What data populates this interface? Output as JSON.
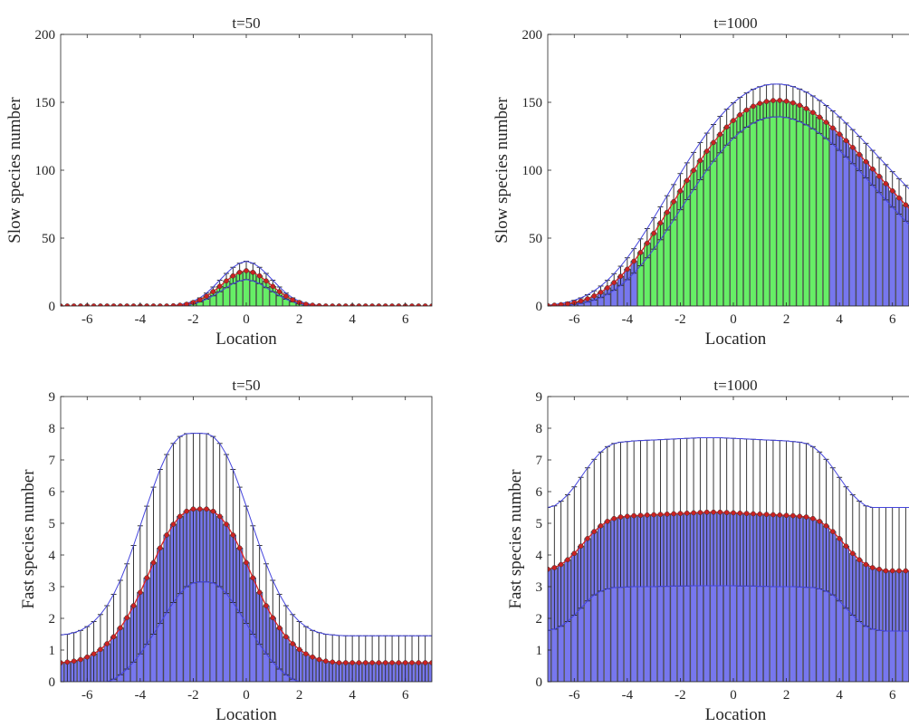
{
  "colors": {
    "slow_bar_face": "#66ee66",
    "fast_bar_face": "#7777ee",
    "bar_edge": "#333333",
    "mean_curve": "#dd2222",
    "marker_face": "#cc2222",
    "bound_curve": "#4444dd",
    "errorbar": "#222222"
  },
  "chart_data": [
    {
      "type": "bar",
      "title": "t=50",
      "xlabel": "Location",
      "ylabel": "Slow species number",
      "xlim": [
        -7,
        7
      ],
      "ylim": [
        0,
        200
      ],
      "xticks": [
        -6,
        -4,
        -2,
        0,
        2,
        4,
        6
      ],
      "yticks": [
        0,
        50,
        100,
        150,
        200
      ],
      "x": [
        -7,
        -6.75,
        -6.5,
        -6.25,
        -6,
        -5.75,
        -5.5,
        -5.25,
        -5,
        -4.75,
        -4.5,
        -4.25,
        -4,
        -3.75,
        -3.5,
        -3.25,
        -3,
        -2.75,
        -2.5,
        -2.25,
        -2,
        -1.75,
        -1.5,
        -1.25,
        -1,
        -0.75,
        -0.5,
        -0.25,
        0,
        0.25,
        0.5,
        0.75,
        1,
        1.25,
        1.5,
        1.75,
        2,
        2.25,
        2.5,
        2.75,
        3,
        3.25,
        3.5,
        3.75,
        4,
        4.25,
        4.5,
        4.75,
        5,
        5.25,
        5.5,
        5.75,
        6,
        6.25,
        6.5,
        6.75,
        7
      ],
      "series": [
        {
          "values": [
            0,
            0,
            0,
            0,
            0,
            0,
            0,
            0,
            0,
            0,
            0,
            0,
            0,
            0,
            0,
            0,
            0,
            0.2,
            0.6,
            1.3,
            2.6,
            4.5,
            7.2,
            10.6,
            14.5,
            18.5,
            22.2,
            24.8,
            26,
            24.8,
            22.2,
            18.5,
            14.5,
            10.6,
            7.2,
            4.5,
            2.6,
            1.3,
            0.6,
            0.2,
            0,
            0,
            0,
            0,
            0,
            0,
            0,
            0,
            0,
            0,
            0,
            0,
            0,
            0,
            0,
            0,
            0
          ]
        },
        {
          "values": [
            0,
            0,
            0,
            0,
            0,
            0,
            0,
            0,
            0,
            0,
            0,
            0,
            0,
            0,
            0,
            0,
            0,
            0.4,
            1,
            2,
            3.5,
            6,
            9.5,
            14,
            19,
            24,
            28.5,
            31.5,
            33,
            31.5,
            28.5,
            24,
            19,
            14,
            9.5,
            6,
            3.5,
            2,
            1,
            0.4,
            0,
            0,
            0,
            0,
            0,
            0,
            0,
            0,
            0,
            0,
            0,
            0,
            0,
            0,
            0,
            0,
            0
          ]
        },
        {
          "values": [
            0,
            0,
            0,
            0,
            0,
            0,
            0,
            0,
            0,
            0,
            0,
            0,
            0,
            0,
            0,
            0,
            0,
            0,
            0.2,
            0.6,
            1.6,
            3,
            5,
            7.5,
            10.5,
            13.5,
            16.5,
            18.5,
            19.5,
            18.5,
            16.5,
            13.5,
            10.5,
            7.5,
            5,
            3,
            1.6,
            0.6,
            0.2,
            0,
            0,
            0,
            0,
            0,
            0,
            0,
            0,
            0,
            0,
            0,
            0,
            0,
            0,
            0,
            0,
            0,
            0
          ]
        }
      ],
      "green_band": [
        -2,
        2
      ]
    },
    {
      "type": "bar",
      "title": "t=1000",
      "xlabel": "Location",
      "ylabel": "Slow species number",
      "xlim": [
        -7,
        7
      ],
      "ylim": [
        0,
        200
      ],
      "xticks": [
        -6,
        -4,
        -2,
        0,
        2,
        4,
        6
      ],
      "yticks": [
        0,
        50,
        100,
        150,
        200
      ],
      "x": [
        -7,
        -6.75,
        -6.5,
        -6.25,
        -6,
        -5.75,
        -5.5,
        -5.25,
        -5,
        -4.75,
        -4.5,
        -4.25,
        -4,
        -3.75,
        -3.5,
        -3.25,
        -3,
        -2.75,
        -2.5,
        -2.25,
        -2,
        -1.75,
        -1.5,
        -1.25,
        -1,
        -0.75,
        -0.5,
        -0.25,
        0,
        0.25,
        0.5,
        0.75,
        1,
        1.25,
        1.5,
        1.75,
        2,
        2.25,
        2.5,
        2.75,
        3,
        3.25,
        3.5,
        3.75,
        4,
        4.25,
        4.5,
        4.75,
        5,
        5.25,
        5.5,
        5.75,
        6,
        6.25,
        6.5,
        6.75,
        7
      ],
      "series": [
        {
          "values": [
            0.3,
            0.6,
            1,
            1.6,
            2.5,
            3.7,
            5.3,
            7.4,
            10.1,
            13.4,
            17.3,
            21.9,
            27.1,
            33,
            39.4,
            46.3,
            53.6,
            61.2,
            69,
            76.9,
            84.7,
            92.4,
            99.9,
            107.1,
            114,
            120.4,
            126.4,
            131.8,
            136.6,
            140.8,
            144.3,
            147.1,
            149.2,
            150.6,
            151.3,
            151.4,
            150.8,
            149.6,
            147.8,
            145.4,
            142.5,
            139.1,
            135.3,
            131.1,
            126.6,
            121.8,
            116.8,
            111.6,
            106.3,
            100.9,
            95.5,
            90.1,
            84.8,
            79.6,
            74.5,
            69.6,
            64.9
          ]
        },
        {
          "values": [
            0.6,
            1.1,
            1.8,
            2.8,
            4.2,
            6,
            8.3,
            11.2,
            14.7,
            18.9,
            23.8,
            29.3,
            35.5,
            42.2,
            49.4,
            57,
            64.9,
            73,
            81.2,
            89.4,
            97.5,
            105.4,
            113.1,
            120.4,
            127.3,
            133.7,
            139.6,
            144.9,
            149.6,
            153.6,
            156.9,
            159.6,
            161.5,
            162.8,
            163.4,
            163.4,
            162.8,
            161.6,
            159.8,
            157.5,
            154.7,
            151.4,
            147.7,
            143.7,
            139.3,
            134.7,
            129.9,
            124.9,
            119.8,
            114.6,
            109.3,
            104.1,
            98.9,
            93.8,
            88.8,
            84,
            79.3
          ]
        },
        {
          "values": [
            0.1,
            0.2,
            0.4,
            0.7,
            1.2,
            1.9,
            2.9,
            4.3,
            6.2,
            8.6,
            11.6,
            15.2,
            19.4,
            24.2,
            29.6,
            35.5,
            41.9,
            48.8,
            56,
            63.4,
            70.9,
            78.4,
            85.8,
            93,
            100,
            106.6,
            112.8,
            118.5,
            123.6,
            128,
            131.7,
            134.7,
            137,
            138.5,
            139.2,
            139.3,
            138.8,
            137.6,
            135.8,
            133.4,
            130.5,
            127.1,
            123.3,
            119.1,
            114.6,
            109.8,
            104.8,
            99.6,
            94.3,
            88.9,
            83.5,
            78.1,
            72.8,
            67.6,
            62.5,
            57.6,
            52.9
          ]
        }
      ],
      "green_band": [
        -3.5,
        3.5
      ]
    },
    {
      "type": "bar",
      "title": "t=50",
      "xlabel": "Location",
      "ylabel": "Fast species number",
      "xlim": [
        -7,
        7
      ],
      "ylim": [
        0,
        9
      ],
      "xticks": [
        -6,
        -4,
        -2,
        0,
        2,
        4,
        6
      ],
      "yticks": [
        0,
        1,
        2,
        3,
        4,
        5,
        6,
        7,
        8,
        9
      ],
      "x": [
        -7,
        -6.75,
        -6.5,
        -6.25,
        -6,
        -5.75,
        -5.5,
        -5.25,
        -5,
        -4.75,
        -4.5,
        -4.25,
        -4,
        -3.75,
        -3.5,
        -3.25,
        -3,
        -2.75,
        -2.5,
        -2.25,
        -2,
        -1.75,
        -1.5,
        -1.25,
        -1,
        -0.75,
        -0.5,
        -0.25,
        0,
        0.25,
        0.5,
        0.75,
        1,
        1.25,
        1.5,
        1.75,
        2,
        2.25,
        2.5,
        2.75,
        3,
        3.25,
        3.5,
        3.75,
        4,
        4.25,
        4.5,
        4.75,
        5,
        5.25,
        5.5,
        5.75,
        6,
        6.25,
        6.5,
        6.75,
        7
      ],
      "series": [
        {
          "values": [
            0.6,
            0.62,
            0.65,
            0.7,
            0.78,
            0.88,
            1.02,
            1.2,
            1.42,
            1.7,
            2.02,
            2.4,
            2.82,
            3.28,
            3.76,
            4.22,
            4.63,
            4.97,
            5.22,
            5.38,
            5.45,
            5.45,
            5.45,
            5.38,
            5.22,
            4.97,
            4.63,
            4.22,
            3.76,
            3.28,
            2.82,
            2.4,
            2.02,
            1.7,
            1.42,
            1.2,
            1.02,
            0.88,
            0.78,
            0.7,
            0.65,
            0.62,
            0.6,
            0.6,
            0.6,
            0.6,
            0.6,
            0.6,
            0.6,
            0.6,
            0.6,
            0.6,
            0.6,
            0.6,
            0.6,
            0.6,
            0.6
          ]
        },
        {
          "values": [
            1.48,
            1.5,
            1.55,
            1.62,
            1.74,
            1.9,
            2.12,
            2.4,
            2.76,
            3.2,
            3.72,
            4.3,
            4.92,
            5.54,
            6.14,
            6.7,
            7.17,
            7.52,
            7.74,
            7.83,
            7.84,
            7.84,
            7.83,
            7.74,
            7.52,
            7.17,
            6.7,
            6.14,
            5.54,
            4.92,
            4.3,
            3.72,
            3.2,
            2.76,
            2.4,
            2.12,
            1.9,
            1.74,
            1.62,
            1.55,
            1.5,
            1.48,
            1.46,
            1.45,
            1.45,
            1.45,
            1.45,
            1.45,
            1.45,
            1.45,
            1.45,
            1.45,
            1.45,
            1.45,
            1.45,
            1.45,
            1.45
          ]
        },
        {
          "values": [
            0,
            0,
            0,
            0,
            0,
            0,
            0,
            0,
            0.08,
            0.22,
            0.4,
            0.62,
            0.88,
            1.18,
            1.5,
            1.84,
            2.18,
            2.5,
            2.78,
            3,
            3.12,
            3.15,
            3.15,
            3.12,
            3,
            2.78,
            2.5,
            2.18,
            1.84,
            1.5,
            1.18,
            0.88,
            0.62,
            0.4,
            0.22,
            0.08,
            0,
            0,
            0,
            0,
            0,
            0,
            0,
            0,
            0,
            0,
            0,
            0,
            0,
            0,
            0,
            0,
            0,
            0,
            0,
            0,
            0
          ]
        }
      ]
    },
    {
      "type": "bar",
      "title": "t=1000",
      "xlabel": "Location",
      "ylabel": "Fast species number",
      "xlim": [
        -7,
        7
      ],
      "ylim": [
        0,
        9
      ],
      "xticks": [
        -6,
        -4,
        -2,
        0,
        2,
        4,
        6
      ],
      "yticks": [
        0,
        1,
        2,
        3,
        4,
        5,
        6,
        7,
        8,
        9
      ],
      "x": [
        -7,
        -6.75,
        -6.5,
        -6.25,
        -6,
        -5.75,
        -5.5,
        -5.25,
        -5,
        -4.75,
        -4.5,
        -4.25,
        -4,
        -3.75,
        -3.5,
        -3.25,
        -3,
        -2.75,
        -2.5,
        -2.25,
        -2,
        -1.75,
        -1.5,
        -1.25,
        -1,
        -0.75,
        -0.5,
        -0.25,
        0,
        0.25,
        0.5,
        0.75,
        1,
        1.25,
        1.5,
        1.75,
        2,
        2.25,
        2.5,
        2.75,
        3,
        3.25,
        3.5,
        3.75,
        4,
        4.25,
        4.5,
        4.75,
        5,
        5.25,
        5.5,
        5.75,
        6,
        6.25,
        6.5,
        6.75,
        7
      ],
      "series": [
        {
          "values": [
            3.55,
            3.6,
            3.7,
            3.85,
            4.05,
            4.28,
            4.52,
            4.74,
            4.92,
            5.06,
            5.15,
            5.2,
            5.22,
            5.24,
            5.25,
            5.26,
            5.27,
            5.28,
            5.29,
            5.3,
            5.31,
            5.32,
            5.33,
            5.34,
            5.35,
            5.35,
            5.35,
            5.34,
            5.33,
            5.32,
            5.31,
            5.3,
            5.29,
            5.28,
            5.27,
            5.26,
            5.25,
            5.24,
            5.22,
            5.2,
            5.15,
            5.06,
            4.92,
            4.74,
            4.52,
            4.28,
            4.05,
            3.85,
            3.7,
            3.6,
            3.55,
            3.5,
            3.5,
            3.5,
            3.5,
            3.5,
            3.5
          ]
        },
        {
          "values": [
            5.5,
            5.55,
            5.7,
            5.9,
            6.15,
            6.45,
            6.75,
            7.02,
            7.25,
            7.42,
            7.52,
            7.56,
            7.58,
            7.6,
            7.61,
            7.62,
            7.63,
            7.64,
            7.65,
            7.66,
            7.67,
            7.68,
            7.69,
            7.7,
            7.7,
            7.7,
            7.7,
            7.69,
            7.68,
            7.67,
            7.66,
            7.65,
            7.64,
            7.63,
            7.62,
            7.61,
            7.6,
            7.58,
            7.56,
            7.52,
            7.42,
            7.25,
            7.02,
            6.75,
            6.45,
            6.15,
            5.9,
            5.7,
            5.55,
            5.5,
            5.5,
            5.5,
            5.5,
            5.5,
            5.5,
            5.5,
            5.5
          ]
        },
        {
          "values": [
            1.62,
            1.66,
            1.75,
            1.9,
            2.1,
            2.32,
            2.55,
            2.74,
            2.86,
            2.93,
            2.97,
            2.98,
            2.99,
            3,
            3,
            3,
            3,
            3.01,
            3.01,
            3.02,
            3.02,
            3.02,
            3.03,
            3.03,
            3.03,
            3.03,
            3.03,
            3.03,
            3.03,
            3.02,
            3.02,
            3.02,
            3.01,
            3.01,
            3,
            3,
            3,
            3,
            2.99,
            2.98,
            2.97,
            2.93,
            2.86,
            2.74,
            2.55,
            2.32,
            2.1,
            1.9,
            1.75,
            1.66,
            1.62,
            1.6,
            1.6,
            1.6,
            1.6,
            1.6,
            1.6
          ]
        }
      ]
    }
  ]
}
